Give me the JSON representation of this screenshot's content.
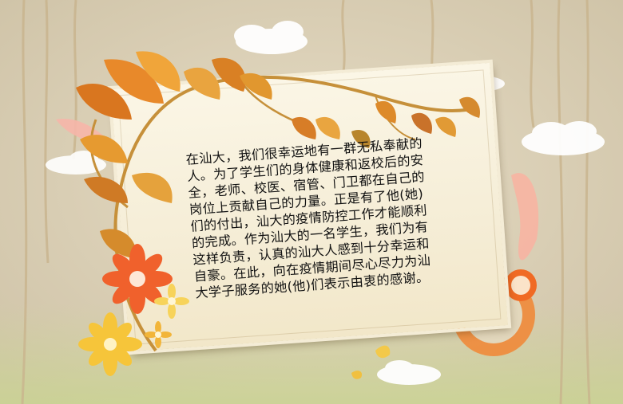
{
  "message": {
    "lines": [
      "在汕大，我们很幸运地有一群无私奉献的",
      "人。为了学生们的身体健康和返校后的安",
      "全，老师、校医、宿管、门卫都在自己的",
      "岗位上贡献自己的力量。正是有了他(她)",
      "们的付出，汕大的疫情防控工作才能顺利",
      "的完成。作为汕大的一名学生，我们为有",
      "这样负责，认真的汕大人感到十分幸运和",
      "自豪。在此，向在疫情期间尽心尽力为汕",
      "大学子服务的她(他)们表示由衷的感谢。"
    ]
  },
  "colors": {
    "background": "#d9cfb8",
    "card": "#f8f1dc",
    "leaf_orange": "#e8892a",
    "leaf_gold": "#d9a53a",
    "flower_red": "#f0612c",
    "flower_yellow": "#f6c53a",
    "ring_orange": "#ee7a28"
  }
}
